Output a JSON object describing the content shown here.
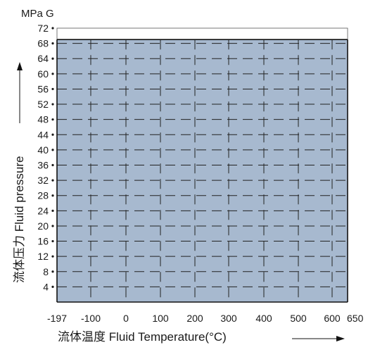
{
  "chart_data": {
    "type": "area",
    "title": "",
    "unit_label": "MPa G",
    "xlabel": "流体温度 Fluid Temperature(°C)",
    "ylabel": "流体压力 Fluid pressure",
    "xlim": [
      -197,
      650
    ],
    "ylim": [
      0,
      72
    ],
    "x_ticks": [
      -197,
      -100,
      0,
      100,
      200,
      300,
      400,
      500,
      600,
      650
    ],
    "y_ticks": [
      4,
      8,
      12,
      16,
      20,
      24,
      28,
      32,
      36,
      40,
      44,
      48,
      52,
      56,
      60,
      64,
      68,
      72
    ],
    "grid": true,
    "grid_style": "dashed",
    "region": {
      "x": [
        -197,
        650
      ],
      "y": [
        0,
        69
      ]
    },
    "fill_color": "#a7b9cf",
    "boundary_color": "#111111",
    "grid_color": "#222222"
  }
}
